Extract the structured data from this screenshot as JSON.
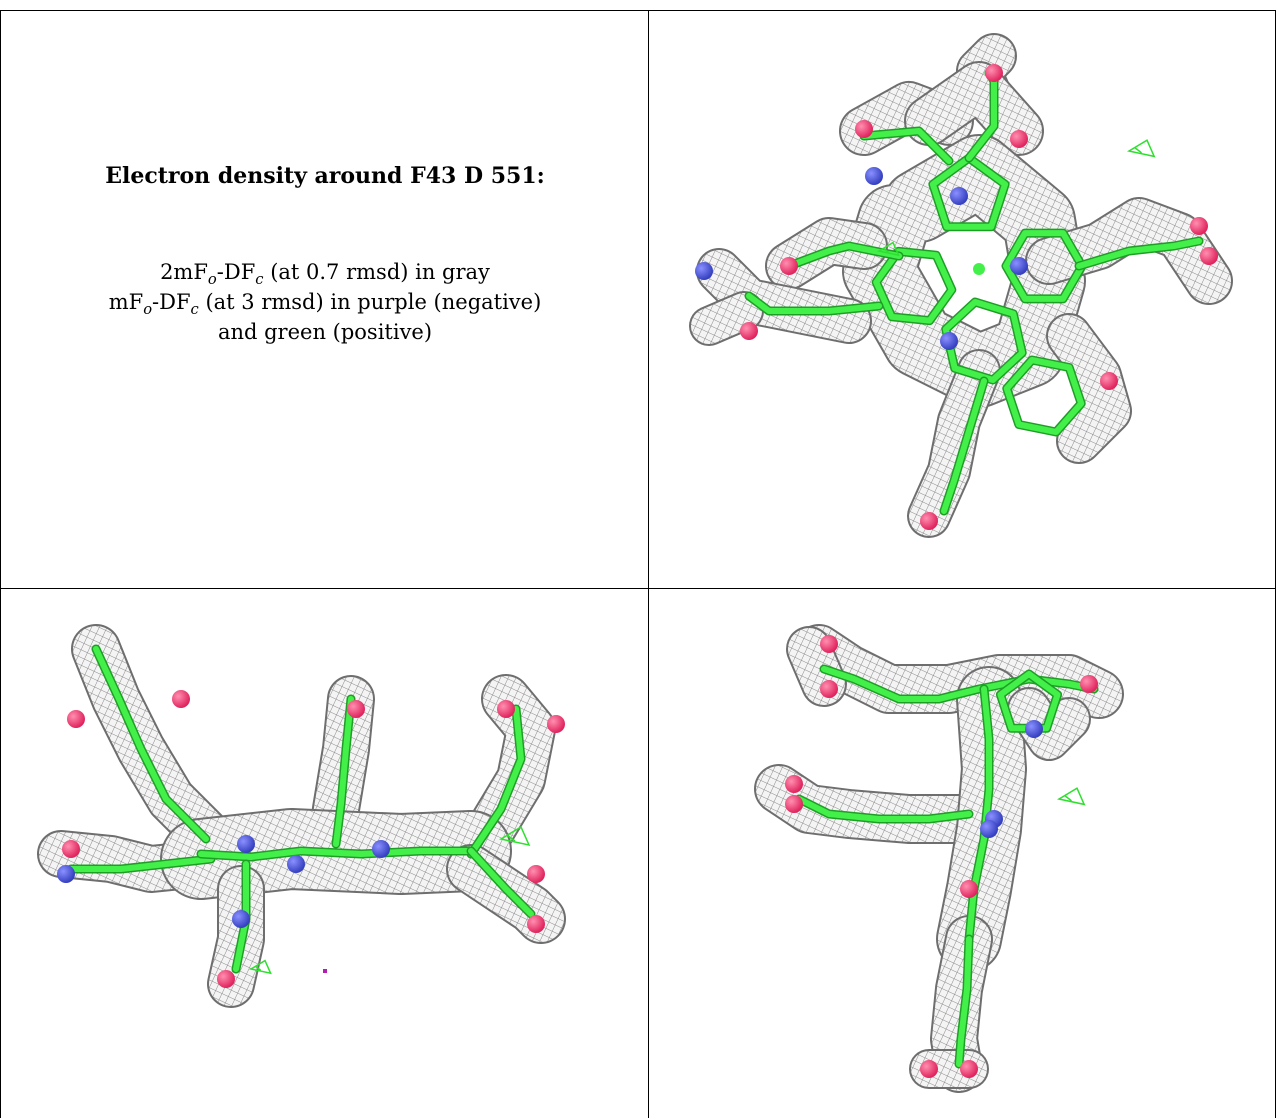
{
  "caption": {
    "title": "Electron density around F43 D 551:",
    "line1_main": "2mF",
    "line1_sub1": "o",
    "line1_mid": "-DF",
    "line1_sub2": "c",
    "line1_rest": " (at 0.7 rmsd) in gray",
    "line2_main": "mF",
    "line2_sub1": "o",
    "line2_mid": "-DF",
    "line2_sub2": "c",
    "line2_rest": " (at 3 rmsd) in purple (negative)",
    "line3": "and green (positive)"
  },
  "colors": {
    "mesh_gray": "#8a8a8a",
    "bond_green": "#43f04a",
    "oxygen_red": "#e0245e",
    "nitrogen_blue": "#3540c0",
    "positive_green": "#2ee02e",
    "negative_purple": "#b01fb0"
  },
  "panels": [
    {
      "name": "top-view-panel",
      "view": "top"
    },
    {
      "name": "side-view-panel",
      "view": "side"
    },
    {
      "name": "end-view-panel",
      "view": "end"
    }
  ]
}
